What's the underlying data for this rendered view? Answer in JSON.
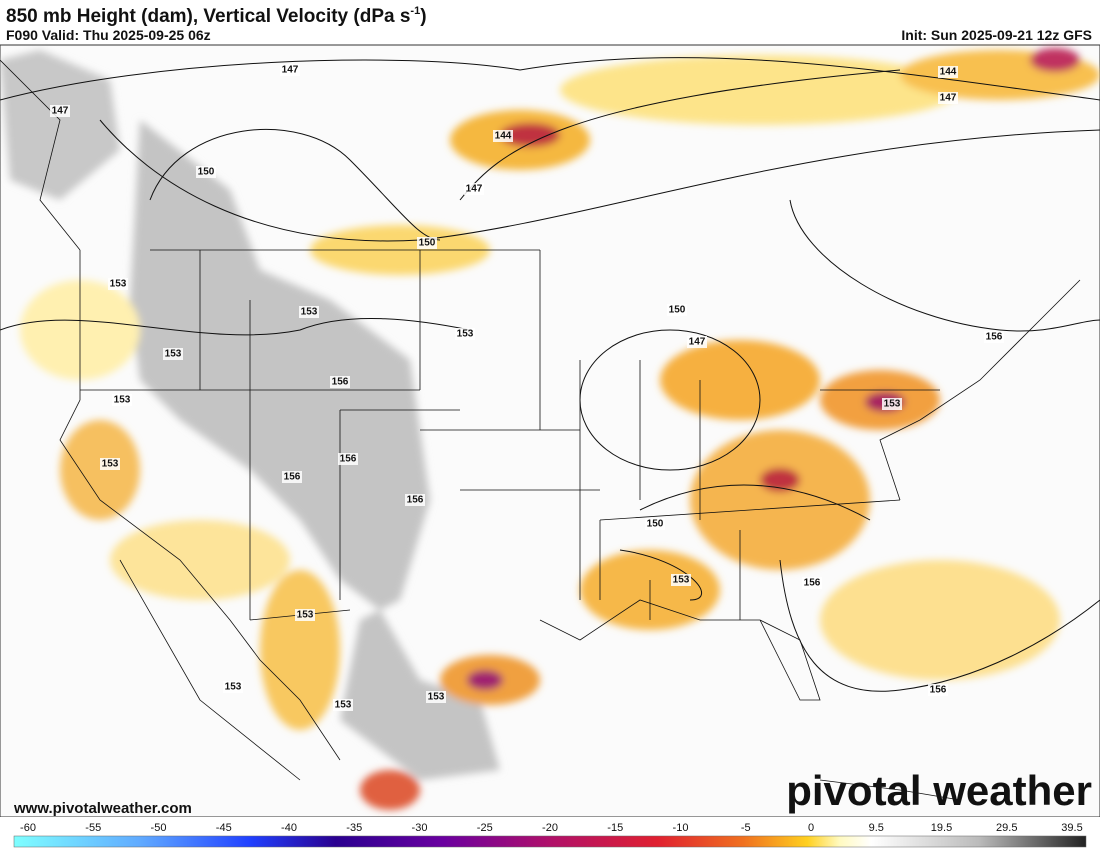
{
  "header": {
    "title": "850 mb Height (dam), Vertical Velocity (dPa s",
    "title_superscript": "-1",
    "title_end": ")",
    "valid": "F090 Valid: Thu 2025-09-25 06z",
    "init": "Init: Sun 2025-09-21 12z GFS"
  },
  "contour_labels": [
    147,
    147,
    144,
    147,
    144,
    147,
    150,
    150,
    153,
    153,
    153,
    150,
    147,
    153,
    156,
    153,
    153,
    153,
    156,
    156,
    156,
    150,
    153,
    156,
    153,
    153,
    156,
    153,
    153,
    156
  ],
  "colorbar": {
    "ticks": [
      -60,
      -55,
      -50,
      -45,
      -40,
      -35,
      -30,
      -25,
      -20,
      -15,
      -10,
      -5,
      0,
      9.5,
      19.5,
      29.5,
      39.5
    ]
  },
  "footer": {
    "website": "www.pivotalweather.com",
    "watermark": "pivotal weather"
  }
}
